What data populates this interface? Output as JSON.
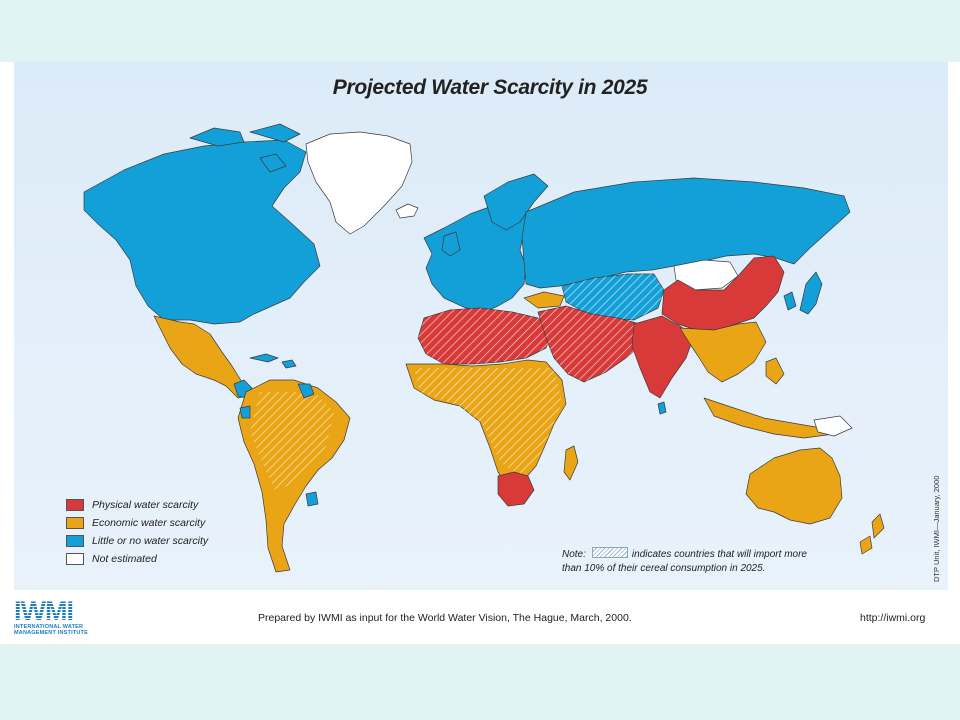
{
  "title": "Projected Water Scarcity in 2025",
  "colors": {
    "physical": "#d83a3a",
    "economic": "#e9a516",
    "little": "#13a0d8",
    "not_estimated": "#ffffff",
    "ocean": "#dcebf8",
    "border": "#3b3b3b"
  },
  "legend": {
    "items": [
      {
        "label": "Physical water scarcity",
        "color": "#d83a3a"
      },
      {
        "label": "Economic water scarcity",
        "color": "#e9a516"
      },
      {
        "label": "Little or no water scarcity",
        "color": "#13a0d8"
      },
      {
        "label": "Not estimated",
        "color": "#ffffff"
      }
    ]
  },
  "note": {
    "label": "Note:",
    "text_1": "indicates countries that will import more",
    "text_2": "than 10% of their cereal consumption in 2025."
  },
  "side_credit": "DTP Unit, IWMI—January, 2000",
  "footer": {
    "logo_text": "IWMI",
    "logo_sub_1": "INTERNATIONAL WATER",
    "logo_sub_2": "MANAGEMENT INSTITUTE",
    "prepared": "Prepared by IWMI as input for the World Water Vision, The Hague, March, 2000.",
    "url": "http://iwmi.org"
  }
}
